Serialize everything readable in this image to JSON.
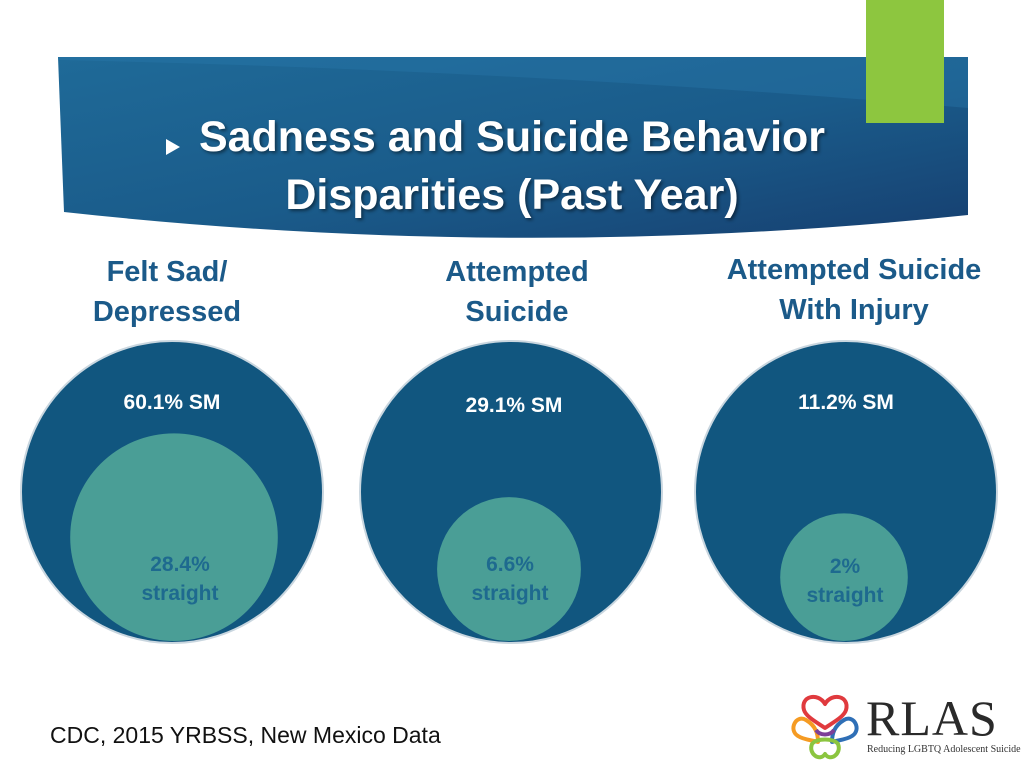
{
  "slide": {
    "title_line1": "Sadness and Suicide Behavior",
    "title_line2": "Disparities (Past Year)",
    "source": "CDC, 2015 YRBSS, New Mexico Data",
    "logo_word": "RLAS",
    "logo_tagline": "Reducing LGBTQ Adolescent Suicide"
  },
  "colors": {
    "banner": "#1a5b8a",
    "banner_dark": "#163f70",
    "accent": "#8dc63f",
    "outer_circle": "#11567f",
    "inner_circle": "#4a9e96"
  },
  "chart_data": {
    "type": "nested-circle",
    "series": [
      {
        "name": "SM"
      },
      {
        "name": "straight"
      }
    ],
    "groups": [
      {
        "header_line1": "Felt Sad/",
        "header_line2": "Depressed",
        "sm_value": 60.1,
        "straight_value": 28.4,
        "sm_label": "60.1% SM",
        "straight_label_line1": "28.4%",
        "straight_label_line2": "straight"
      },
      {
        "header_line1": "Attempted",
        "header_line2": "Suicide",
        "sm_value": 29.1,
        "straight_value": 6.6,
        "sm_label": "29.1% SM",
        "straight_label_line1": "6.6%",
        "straight_label_line2": "straight"
      },
      {
        "header_line1": "Attempted Suicide",
        "header_line2": "With Injury",
        "sm_value": 11.2,
        "straight_value": 2,
        "sm_label": "11.2% SM",
        "straight_label_line1": "2%",
        "straight_label_line2": "straight"
      }
    ]
  }
}
